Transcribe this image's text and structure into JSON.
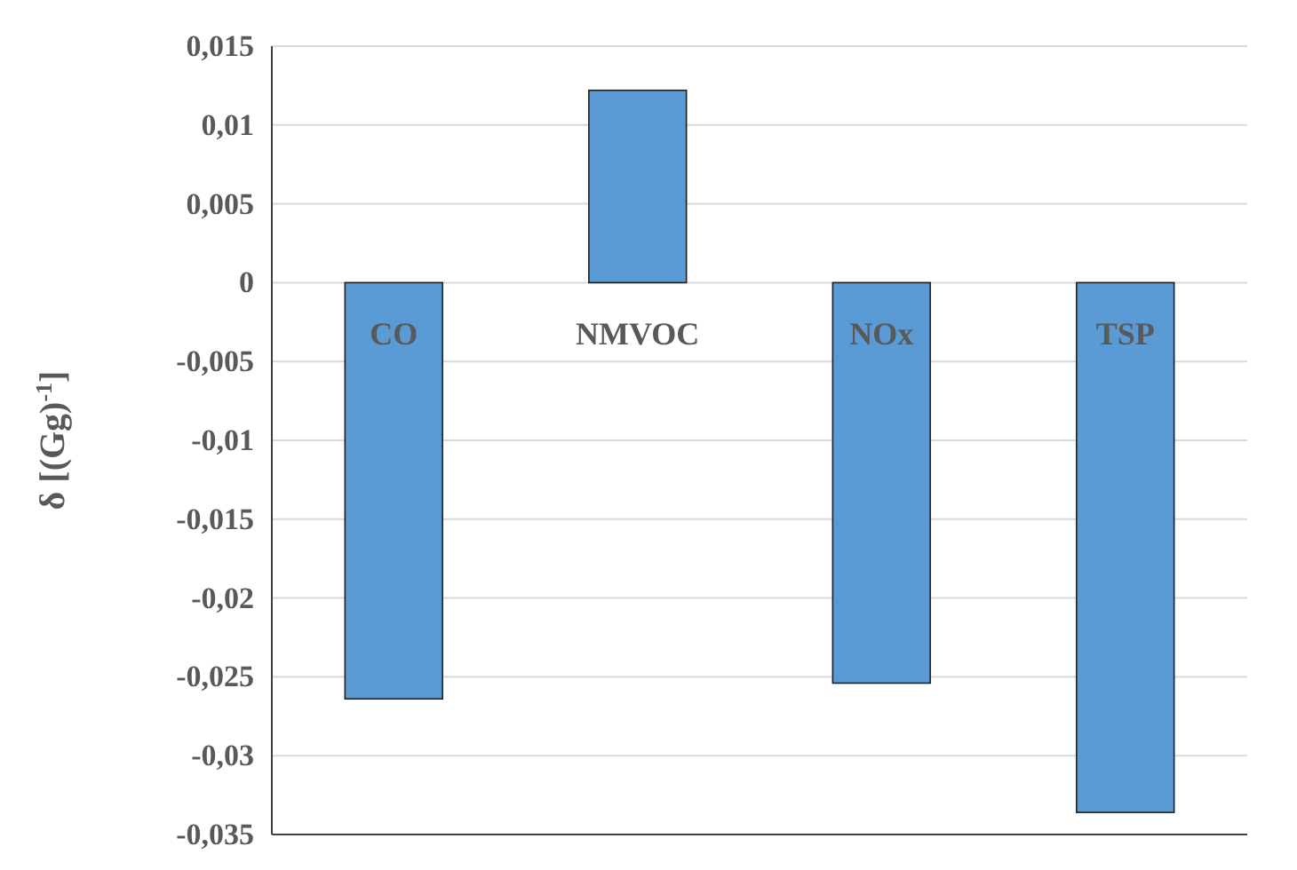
{
  "chart_data": {
    "type": "bar",
    "ylabel": "δ [(Gg)$^{-1}$]",
    "categories": [
      "CO",
      "NMVOC",
      "NOx",
      "TSP"
    ],
    "values": [
      -0.0264,
      0.0122,
      -0.0254,
      -0.0336
    ],
    "color": "#5b9bd5",
    "ylim": [
      -0.035,
      0.015
    ],
    "yticks": [
      {
        "value": -0.035,
        "label": "-0,035"
      },
      {
        "value": -0.03,
        "label": "-0,03"
      },
      {
        "value": -0.025,
        "label": "-0,025"
      },
      {
        "value": -0.02,
        "label": "-0,02"
      },
      {
        "value": -0.015,
        "label": "-0,015"
      },
      {
        "value": -0.01,
        "label": "-0,01"
      },
      {
        "value": -0.005,
        "label": "-0,005"
      },
      {
        "value": 0,
        "label": "0"
      },
      {
        "value": 0.005,
        "label": "0,005"
      },
      {
        "value": 0.01,
        "label": "0,01"
      },
      {
        "value": 0.015,
        "label": "0,015"
      }
    ],
    "grid": "y"
  }
}
